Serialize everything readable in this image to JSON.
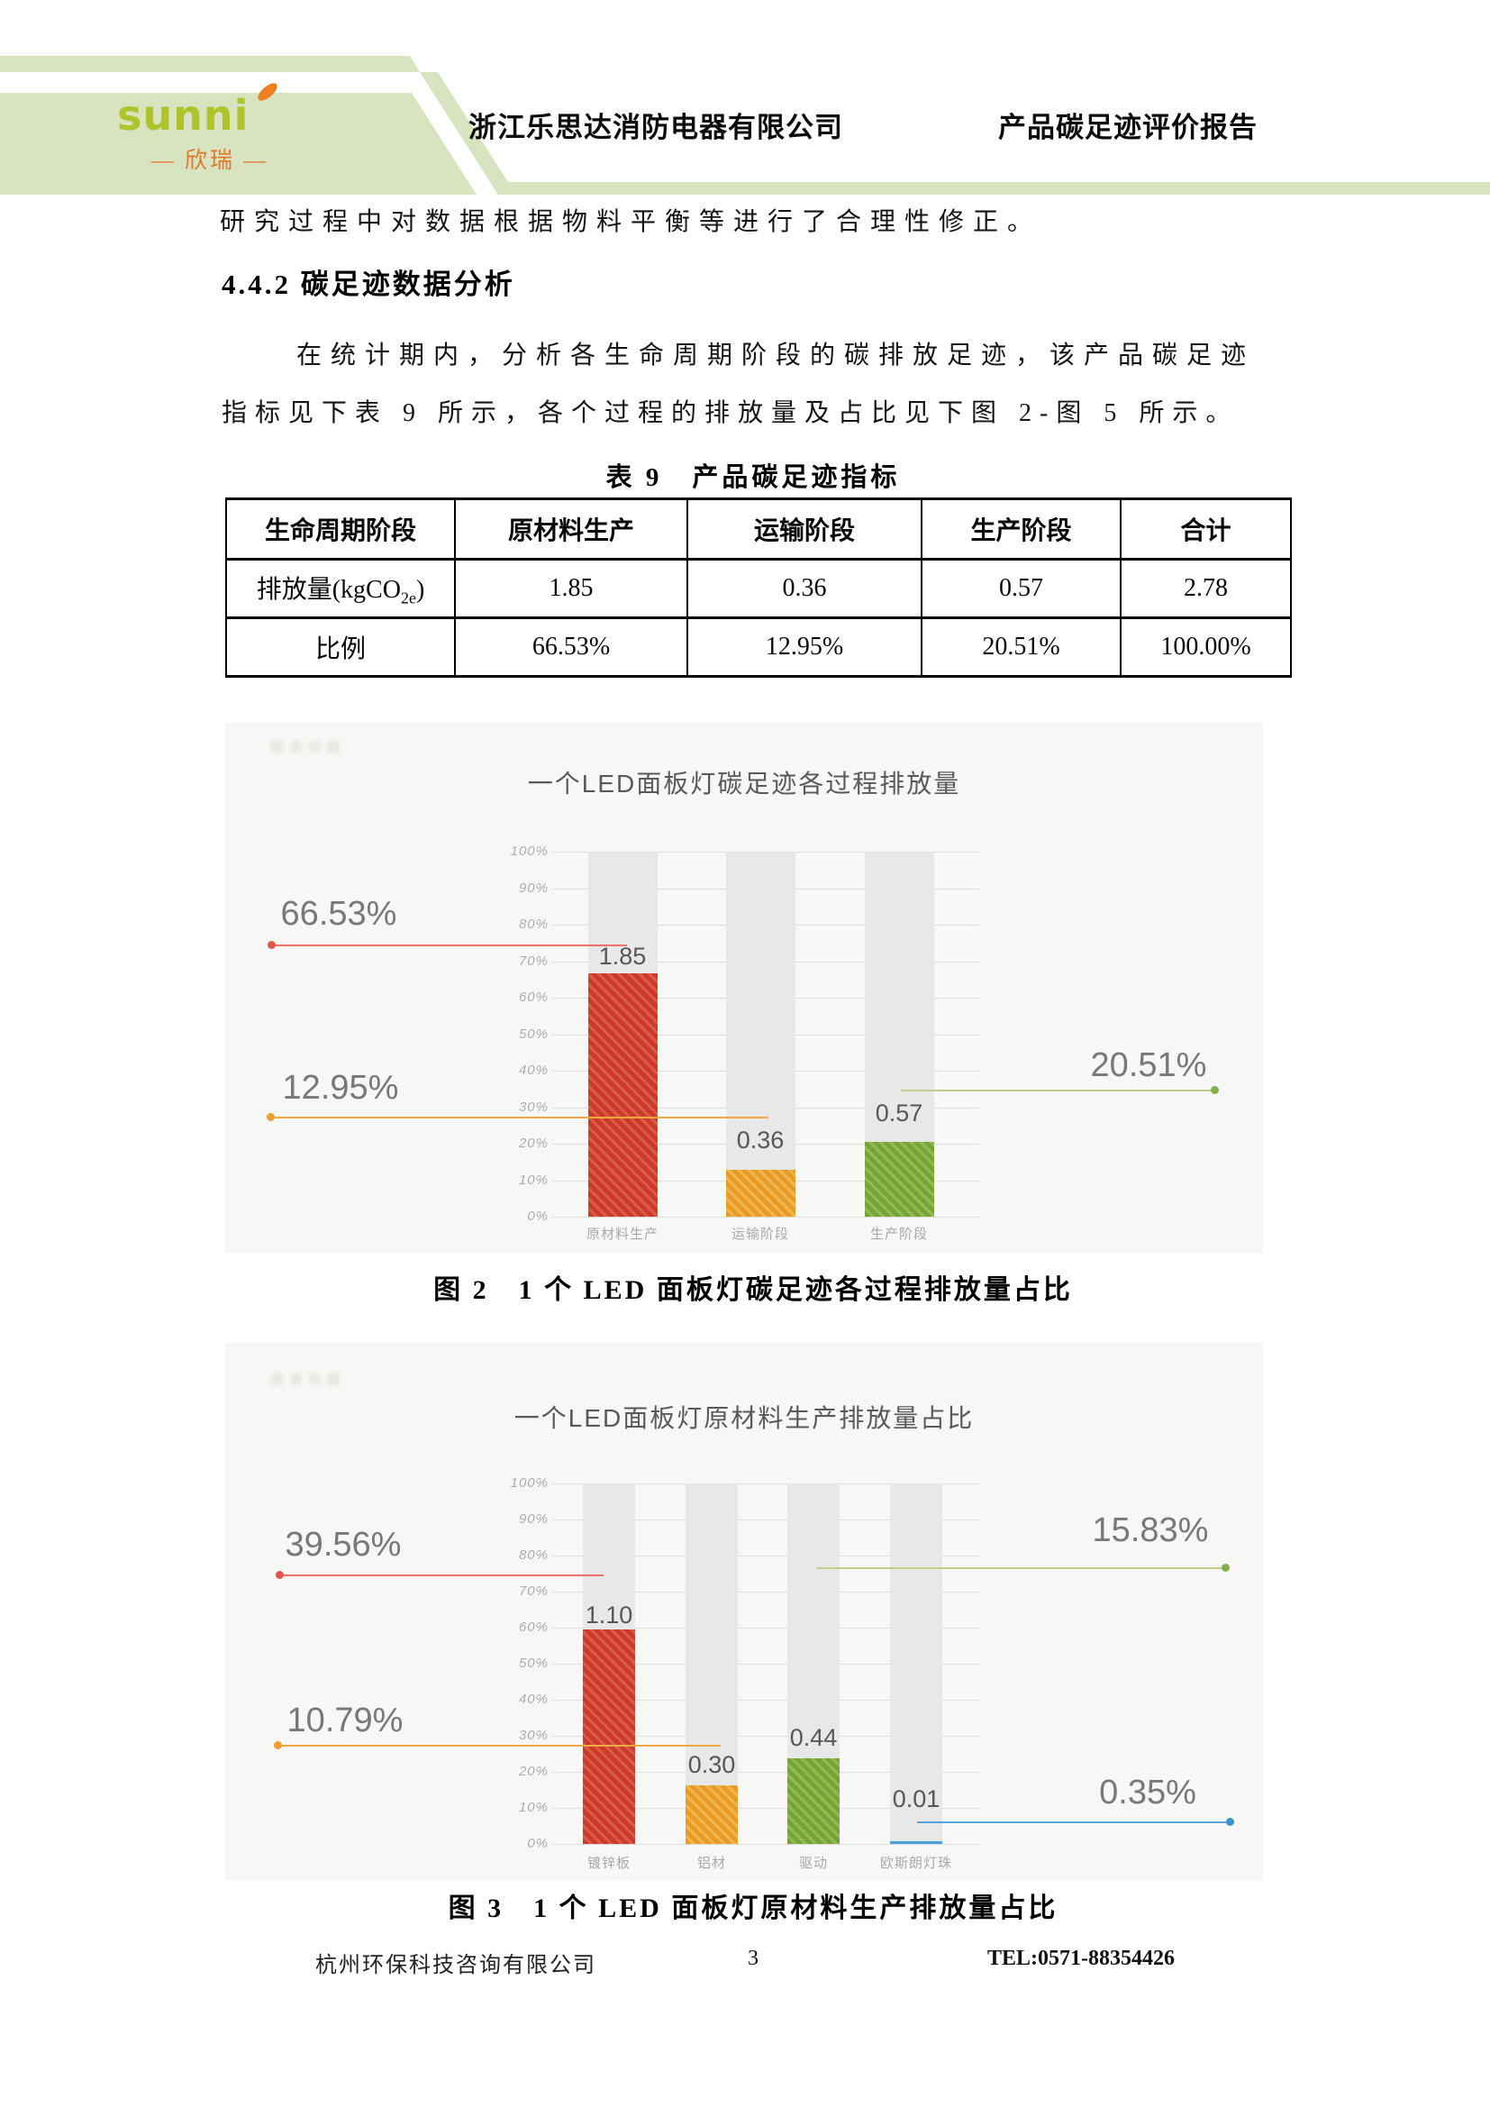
{
  "header": {
    "brand": "sunni",
    "brand_cn": "— 欣瑞 —",
    "company": "浙江乐思达消防电器有限公司",
    "report_title": "产品碳足迹评价报告",
    "band_color": "#d8e3bf",
    "logo_green": "#aec32c",
    "logo_orange": "#e2762a"
  },
  "intro_line": "研究过程中对数据根据物料平衡等进行了合理性修正。",
  "section": {
    "heading": "4.4.2 碳足迹数据分析",
    "para_line1": "在统计期内，分析各生命周期阶段的碳排放足迹，该产品碳足迹",
    "para_line2": "指标见下表 9 所示，各个过程的排放量及占比见下图 2-图 5 所示。"
  },
  "table": {
    "title": "表 9　产品碳足迹指标",
    "headers": [
      "生命周期阶段",
      "原材料生产",
      "运输阶段",
      "生产阶段",
      "合计"
    ],
    "row1": {
      "label_pre": "排放量(kgCO",
      "label_sub": "2e",
      "label_post": ")",
      "values": [
        "1.85",
        "0.36",
        "0.57",
        "2.78"
      ]
    },
    "row2": {
      "label": "比例",
      "values": [
        "66.53%",
        "12.95%",
        "20.51%",
        "100.00%"
      ]
    }
  },
  "chart_data": [
    {
      "type": "bar",
      "title": "一个LED面板灯碳足迹各过程排放量",
      "categories": [
        "原材料生产",
        "运输阶段",
        "生产阶段"
      ],
      "values": [
        1.85,
        0.36,
        0.57
      ],
      "value_labels": [
        "1.85",
        "0.36",
        "0.57"
      ],
      "percent_labels": [
        "66.53%",
        "12.95%",
        "20.51%"
      ],
      "total": 2.78,
      "ylim": [
        0,
        100
      ],
      "yticks": [
        "0%",
        "10%",
        "20%",
        "30%",
        "40%",
        "50%",
        "60%",
        "70%",
        "80%",
        "90%",
        "100%"
      ],
      "grid": true,
      "legend": "none",
      "watermark": "图表标题",
      "bar_colors": [
        "#cd3a29",
        "#e89c25",
        "#78a437"
      ]
    },
    {
      "type": "bar",
      "title": "一个LED面板灯原材料生产排放量占比",
      "categories": [
        "镀锌板",
        "铝材",
        "驱动",
        "欧斯朗灯珠"
      ],
      "values": [
        1.1,
        0.3,
        0.44,
        0.01
      ],
      "value_labels": [
        "1.10",
        "0.30",
        "0.44",
        "0.01"
      ],
      "percent_labels": [
        "39.56%",
        "10.79%",
        "15.83%",
        "0.35%"
      ],
      "total": 1.85,
      "ylim": [
        0,
        100
      ],
      "yticks": [
        "0%",
        "10%",
        "20%",
        "30%",
        "40%",
        "50%",
        "60%",
        "70%",
        "80%",
        "90%",
        "100%"
      ],
      "grid": true,
      "legend": "none",
      "watermark": "图表标题",
      "bar_colors": [
        "#cd3a29",
        "#e89c25",
        "#78a437",
        "#4a9fd8"
      ]
    }
  ],
  "captions": {
    "fig2": "图 2　1 个 LED 面板灯碳足迹各过程排放量占比",
    "fig3": "图 3　1 个 LED 面板灯原材料生产排放量占比"
  },
  "footer": {
    "company": "杭州环保科技咨询有限公司",
    "page": "3",
    "tel": "TEL:0571-88354426"
  }
}
